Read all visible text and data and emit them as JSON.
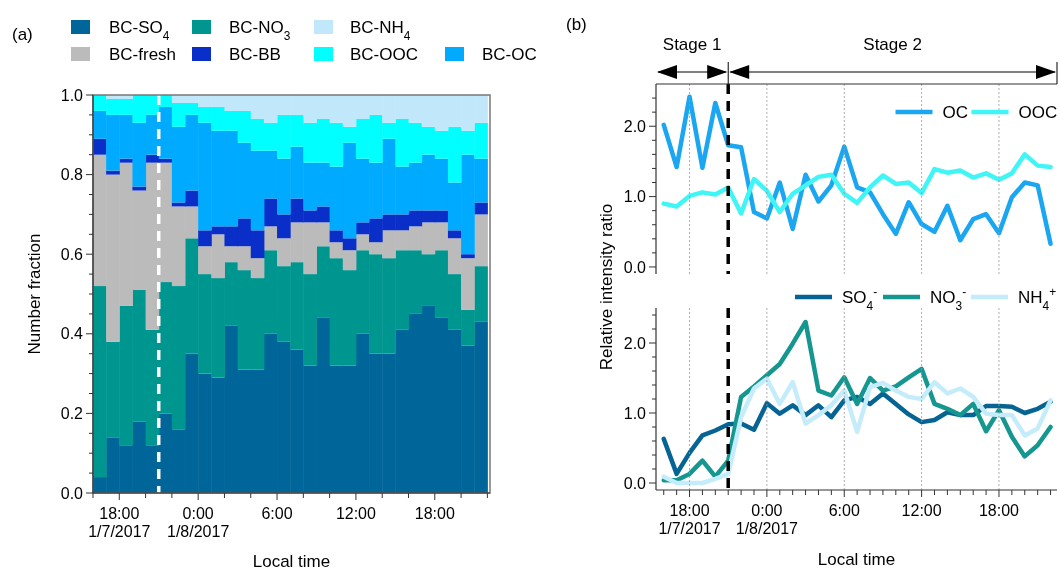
{
  "chart_data": [
    {
      "type": "bar",
      "stacked": true,
      "annotations": [
        "(a)"
      ],
      "xlabel": "Local time",
      "ylabel": "Number fraction",
      "legend": "top",
      "x": [
        "2017-01-07T16:30",
        "2017-01-07T17:30",
        "2017-01-07T18:30",
        "2017-01-07T19:30",
        "2017-01-07T20:30",
        "2017-01-07T21:30",
        "2017-01-07T22:30",
        "2017-01-07T23:30",
        "2017-01-08T00:30",
        "2017-01-08T01:30",
        "2017-01-08T02:30",
        "2017-01-08T03:30",
        "2017-01-08T04:30",
        "2017-01-08T05:30",
        "2017-01-08T06:30",
        "2017-01-08T07:30",
        "2017-01-08T08:30",
        "2017-01-08T09:30",
        "2017-01-08T10:30",
        "2017-01-08T11:30",
        "2017-01-08T12:30",
        "2017-01-08T13:30",
        "2017-01-08T14:30",
        "2017-01-08T15:30",
        "2017-01-08T16:30",
        "2017-01-08T17:30",
        "2017-01-08T18:30",
        "2017-01-08T19:30",
        "2017-01-08T20:30",
        "2017-01-08T21:30"
      ],
      "xlim": [
        "2017-01-07T16:00",
        "2017-01-08T22:12"
      ],
      "xticks": [
        {
          "value": "2017-01-07T16:00",
          "label": null
        },
        {
          "value": "2017-01-07T18:00",
          "label": "18:00\n1/7/2017"
        },
        {
          "value": "2017-01-07T20:00",
          "label": null
        },
        {
          "value": "2017-01-07T22:00",
          "label": null
        },
        {
          "value": "2017-01-08T00:00",
          "label": "0:00\n1/8/2017"
        },
        {
          "value": "2017-01-08T02:00",
          "label": null
        },
        {
          "value": "2017-01-08T04:00",
          "label": null
        },
        {
          "value": "2017-01-08T06:00",
          "label": "6:00"
        },
        {
          "value": "2017-01-08T08:00",
          "label": null
        },
        {
          "value": "2017-01-08T10:00",
          "label": null
        },
        {
          "value": "2017-01-08T12:00",
          "label": "12:00"
        },
        {
          "value": "2017-01-08T14:00",
          "label": null
        },
        {
          "value": "2017-01-08T16:00",
          "label": null
        },
        {
          "value": "2017-01-08T18:00",
          "label": "18:00"
        },
        {
          "value": "2017-01-08T20:00",
          "label": null
        },
        {
          "value": "2017-01-08T22:00",
          "label": null
        }
      ],
      "ylim": [
        0,
        1
      ],
      "yticks": [
        {
          "value": 0,
          "label": "0.0"
        },
        {
          "value": 0.05,
          "label": null
        },
        {
          "value": 0.1,
          "label": null
        },
        {
          "value": 0.15,
          "label": null
        },
        {
          "value": 0.2,
          "label": "0.2"
        },
        {
          "value": 0.25,
          "label": null
        },
        {
          "value": 0.3,
          "label": null
        },
        {
          "value": 0.35,
          "label": null
        },
        {
          "value": 0.4,
          "label": "0.4"
        },
        {
          "value": 0.45,
          "label": null
        },
        {
          "value": 0.5,
          "label": null
        },
        {
          "value": 0.55,
          "label": null
        },
        {
          "value": 0.6,
          "label": "0.6"
        },
        {
          "value": 0.65,
          "label": null
        },
        {
          "value": 0.7,
          "label": null
        },
        {
          "value": 0.75,
          "label": null
        },
        {
          "value": 0.8,
          "label": "0.8"
        },
        {
          "value": 0.85,
          "label": null
        },
        {
          "value": 0.9,
          "label": null
        },
        {
          "value": 0.95,
          "label": null
        },
        {
          "value": 1,
          "label": "1.0"
        }
      ],
      "ref_lines": [
        {
          "axis": "x",
          "value": "2017-01-07T21:00",
          "color": "#ffffff",
          "line_style": "dashed"
        }
      ],
      "series": [
        {
          "name": "BC-SO$_{4}$",
          "color": "#006699",
          "values": [
            0.04,
            0.14,
            0.12,
            0.18,
            0.12,
            0.2,
            0.16,
            0.35,
            0.3,
            0.29,
            0.42,
            0.31,
            0.31,
            0.4,
            0.38,
            0.36,
            0.32,
            0.44,
            0.32,
            0.32,
            0.4,
            0.35,
            0.35,
            0.41,
            0.45,
            0.47,
            0.44,
            0.41,
            0.37,
            0.43
          ]
        },
        {
          "name": "BC-NO$_{3}$",
          "color": "#009690",
          "values": [
            0.48,
            0.24,
            0.35,
            0.33,
            0.29,
            0.33,
            0.36,
            0.29,
            0.25,
            0.25,
            0.16,
            0.25,
            0.23,
            0.21,
            0.19,
            0.22,
            0.23,
            0.18,
            0.27,
            0.24,
            0.21,
            0.25,
            0.24,
            0.2,
            0.16,
            0.13,
            0.17,
            0.14,
            0.09,
            0.14
          ]
        },
        {
          "name": "BC-fresh",
          "color": "#bbbbbb",
          "values": [
            0.33,
            0.42,
            0.36,
            0.25,
            0.42,
            0.3,
            0.2,
            0.08,
            0.07,
            0.11,
            0.04,
            0.06,
            0.05,
            0.06,
            0.07,
            0.1,
            0.13,
            0.06,
            0.04,
            0.05,
            0.04,
            0.03,
            0.07,
            0.05,
            0.06,
            0.08,
            0.07,
            0.09,
            0.13,
            0.13
          ]
        },
        {
          "name": "BC-BB",
          "color": "#0a2ec8",
          "values": [
            0.04,
            0.01,
            0.01,
            0.01,
            0.02,
            0.01,
            0.01,
            0.04,
            0.04,
            0.02,
            0.05,
            0.07,
            0.07,
            0.07,
            0.06,
            0.06,
            0.03,
            0.04,
            0.03,
            0.03,
            0.03,
            0.06,
            0.04,
            0.04,
            0.04,
            0.03,
            0.03,
            0.02,
            0.01,
            0.03
          ]
        },
        {
          "name": "BC-OC",
          "color": "#00aaff",
          "values": [
            0.07,
            0.14,
            0.11,
            0.16,
            0.1,
            0.13,
            0.19,
            0.19,
            0.27,
            0.24,
            0.24,
            0.19,
            0.2,
            0.12,
            0.14,
            0.13,
            0.12,
            0.11,
            0.16,
            0.24,
            0.16,
            0.14,
            0.19,
            0.12,
            0.12,
            0.14,
            0.13,
            0.12,
            0.25,
            0.11
          ]
        },
        {
          "name": "BC-OOC",
          "color": "#00ffff",
          "values": [
            0.04,
            0.04,
            0.04,
            0.07,
            0.05,
            0.03,
            0.06,
            0.03,
            0.04,
            0.06,
            0.05,
            0.08,
            0.08,
            0.07,
            0.11,
            0.08,
            0.1,
            0.11,
            0.11,
            0.04,
            0.1,
            0.12,
            0.04,
            0.12,
            0.1,
            0.07,
            0.07,
            0.14,
            0.06,
            0.09
          ]
        },
        {
          "name": "BC-NH$_{4}$",
          "color": "#c0e8fa",
          "values": [
            0,
            0.01,
            0.01,
            0,
            0,
            0,
            0.02,
            0.02,
            0.03,
            0.03,
            0.04,
            0.04,
            0.06,
            0.07,
            0.05,
            0.05,
            0.07,
            0.06,
            0.07,
            0.08,
            0.06,
            0.05,
            0.07,
            0.06,
            0.07,
            0.08,
            0.09,
            0.08,
            0.09,
            0.07
          ]
        }
      ]
    },
    {
      "type": "line",
      "annotations": [
        "(b)",
        "Stage 1",
        "Stage 2"
      ],
      "ylabel": "Relative intensity ratio",
      "legend": "top right",
      "grid": "x",
      "tick_labels": "y",
      "marker": "none",
      "line_style": "solid",
      "x": [
        "2017-01-07T16:00",
        "2017-01-07T17:00",
        "2017-01-07T18:00",
        "2017-01-07T19:00",
        "2017-01-07T20:00",
        "2017-01-07T21:00",
        "2017-01-07T22:00",
        "2017-01-07T23:00",
        "2017-01-08T00:00",
        "2017-01-08T01:00",
        "2017-01-08T02:00",
        "2017-01-08T03:00",
        "2017-01-08T04:00",
        "2017-01-08T05:00",
        "2017-01-08T06:00",
        "2017-01-08T07:00",
        "2017-01-08T08:00",
        "2017-01-08T09:00",
        "2017-01-08T10:00",
        "2017-01-08T11:00",
        "2017-01-08T12:00",
        "2017-01-08T13:00",
        "2017-01-08T14:00",
        "2017-01-08T15:00",
        "2017-01-08T16:00",
        "2017-01-08T17:00",
        "2017-01-08T18:00",
        "2017-01-08T19:00",
        "2017-01-08T20:00",
        "2017-01-08T21:00",
        "2017-01-08T22:00"
      ],
      "xlim": [
        "2017-01-07T15:24",
        "2017-01-08T22:30"
      ],
      "xticks": [
        {
          "value": "2017-01-07T18:00",
          "label": null
        },
        {
          "value": "2017-01-08T00:00",
          "label": null
        },
        {
          "value": "2017-01-08T06:00",
          "label": null
        },
        {
          "value": "2017-01-08T12:00",
          "label": null
        },
        {
          "value": "2017-01-08T18:00",
          "label": null
        }
      ],
      "ylim": [
        -0.1,
        2.6
      ],
      "yticks": [
        {
          "value": 0,
          "label": "0.0"
        },
        {
          "value": 0.2,
          "label": null
        },
        {
          "value": 0.4,
          "label": null
        },
        {
          "value": 0.6,
          "label": null
        },
        {
          "value": 0.8,
          "label": null
        },
        {
          "value": 1,
          "label": "1.0"
        },
        {
          "value": 1.2,
          "label": null
        },
        {
          "value": 1.4,
          "label": null
        },
        {
          "value": 1.6,
          "label": null
        },
        {
          "value": 1.8,
          "label": null
        },
        {
          "value": 2,
          "label": "2.0"
        },
        {
          "value": 2.2,
          "label": null
        },
        {
          "value": 2.4,
          "label": null
        }
      ],
      "ref_lines": [
        {
          "axis": "x",
          "value": "2017-01-07T21:00",
          "color": "#000000",
          "line_style": "dashed"
        }
      ],
      "series": [
        {
          "name": "OC",
          "color": "#1aa6f0",
          "values": [
            2.02,
            1.42,
            2.42,
            1.41,
            2.33,
            1.73,
            1.7,
            0.78,
            0.69,
            1.2,
            0.54,
            1.31,
            0.93,
            1.16,
            1.71,
            1.13,
            1.06,
            0.75,
            0.47,
            0.92,
            0.61,
            0.5,
            0.87,
            0.38,
            0.68,
            0.75,
            0.48,
            0.99,
            1.2,
            1.16,
            0.33
          ]
        },
        {
          "name": "OOC",
          "color": "#3ff5f5",
          "values": [
            0.9,
            0.86,
            1.01,
            1.06,
            1.03,
            1.13,
            0.76,
            1.25,
            1.08,
            0.78,
            1.04,
            1.16,
            1.28,
            1.31,
            1.04,
            0.91,
            1.13,
            1.3,
            1.18,
            1.2,
            1.05,
            1.39,
            1.34,
            1.37,
            1.27,
            1.33,
            1.24,
            1.33,
            1.6,
            1.44,
            1.42
          ]
        }
      ]
    },
    {
      "type": "line",
      "xlabel": "Local time",
      "legend": "top",
      "grid": "x",
      "marker": "none",
      "line_style": "solid",
      "x": [
        "2017-01-07T16:00",
        "2017-01-07T17:00",
        "2017-01-07T18:00",
        "2017-01-07T19:00",
        "2017-01-07T20:00",
        "2017-01-07T21:00",
        "2017-01-07T22:00",
        "2017-01-07T23:00",
        "2017-01-08T00:00",
        "2017-01-08T01:00",
        "2017-01-08T02:00",
        "2017-01-08T03:00",
        "2017-01-08T04:00",
        "2017-01-08T05:00",
        "2017-01-08T06:00",
        "2017-01-08T07:00",
        "2017-01-08T08:00",
        "2017-01-08T09:00",
        "2017-01-08T10:00",
        "2017-01-08T11:00",
        "2017-01-08T12:00",
        "2017-01-08T13:00",
        "2017-01-08T14:00",
        "2017-01-08T15:00",
        "2017-01-08T16:00",
        "2017-01-08T17:00",
        "2017-01-08T18:00",
        "2017-01-08T19:00",
        "2017-01-08T20:00",
        "2017-01-08T21:00",
        "2017-01-08T22:00"
      ],
      "xlim": [
        "2017-01-07T15:24",
        "2017-01-08T22:30"
      ],
      "xticks": [
        {
          "value": "2017-01-07T16:00",
          "label": null
        },
        {
          "value": "2017-01-07T17:00",
          "label": null
        },
        {
          "value": "2017-01-07T18:00",
          "label": "18:00\n1/7/2017"
        },
        {
          "value": "2017-01-07T19:00",
          "label": null
        },
        {
          "value": "2017-01-07T20:00",
          "label": null
        },
        {
          "value": "2017-01-07T21:00",
          "label": null
        },
        {
          "value": "2017-01-07T22:00",
          "label": null
        },
        {
          "value": "2017-01-07T23:00",
          "label": null
        },
        {
          "value": "2017-01-08T00:00",
          "label": "0:00\n1/8/2017"
        },
        {
          "value": "2017-01-08T01:00",
          "label": null
        },
        {
          "value": "2017-01-08T02:00",
          "label": null
        },
        {
          "value": "2017-01-08T03:00",
          "label": null
        },
        {
          "value": "2017-01-08T04:00",
          "label": null
        },
        {
          "value": "2017-01-08T05:00",
          "label": null
        },
        {
          "value": "2017-01-08T06:00",
          "label": "6:00"
        },
        {
          "value": "2017-01-08T07:00",
          "label": null
        },
        {
          "value": "2017-01-08T08:00",
          "label": null
        },
        {
          "value": "2017-01-08T09:00",
          "label": null
        },
        {
          "value": "2017-01-08T10:00",
          "label": null
        },
        {
          "value": "2017-01-08T11:00",
          "label": null
        },
        {
          "value": "2017-01-08T12:00",
          "label": "12:00"
        },
        {
          "value": "2017-01-08T13:00",
          "label": null
        },
        {
          "value": "2017-01-08T14:00",
          "label": null
        },
        {
          "value": "2017-01-08T15:00",
          "label": null
        },
        {
          "value": "2017-01-08T16:00",
          "label": null
        },
        {
          "value": "2017-01-08T17:00",
          "label": null
        },
        {
          "value": "2017-01-08T18:00",
          "label": "18:00"
        },
        {
          "value": "2017-01-08T19:00",
          "label": null
        },
        {
          "value": "2017-01-08T20:00",
          "label": null
        },
        {
          "value": "2017-01-08T21:00",
          "label": null
        },
        {
          "value": "2017-01-08T22:00",
          "label": null
        }
      ],
      "ylim": [
        -0.1,
        2.5
      ],
      "yticks": [
        {
          "value": 0,
          "label": "0.0"
        },
        {
          "value": 0.2,
          "label": null
        },
        {
          "value": 0.4,
          "label": null
        },
        {
          "value": 0.6,
          "label": null
        },
        {
          "value": 0.8,
          "label": null
        },
        {
          "value": 1,
          "label": "1.0"
        },
        {
          "value": 1.2,
          "label": null
        },
        {
          "value": 1.4,
          "label": null
        },
        {
          "value": 1.6,
          "label": null
        },
        {
          "value": 1.8,
          "label": null
        },
        {
          "value": 2,
          "label": "2.0"
        },
        {
          "value": 2.2,
          "label": null
        },
        {
          "value": 2.4,
          "label": null
        }
      ],
      "ref_lines": [
        {
          "axis": "x",
          "value": "2017-01-07T21:00",
          "color": "#000000",
          "line_style": "dashed"
        }
      ],
      "series": [
        {
          "name": "SO$_{4}$$^{-}$",
          "color": "#066494",
          "values": [
            0.63,
            0.13,
            0.43,
            0.68,
            0.75,
            0.84,
            0.85,
            0.76,
            1.14,
            0.99,
            1.11,
            0.97,
            1.11,
            0.94,
            1.18,
            1.23,
            1.13,
            1.28,
            1.13,
            0.98,
            0.87,
            0.9,
            1.01,
            0.97,
            0.97,
            1.1,
            1.1,
            1.09,
            1.0,
            1.06,
            1.16
          ]
        },
        {
          "name": "NO$_{3}$$^{-}$",
          "color": "#15968f",
          "values": [
            0.04,
            0.04,
            0.13,
            0.32,
            0.09,
            0.32,
            1.23,
            1.38,
            1.54,
            1.7,
            1.99,
            2.3,
            1.32,
            1.25,
            1.51,
            1.13,
            1.5,
            1.32,
            1.38,
            1.51,
            1.63,
            1.13,
            1.06,
            0.97,
            1.13,
            0.74,
            1.04,
            0.66,
            0.38,
            0.54,
            0.8
          ]
        },
        {
          "name": "NH$_{4}$$^{+}$",
          "color": "#c4ecfa",
          "values": [
            0.09,
            0,
            0,
            0,
            0.06,
            0.13,
            0.94,
            1.35,
            1.49,
            1.13,
            1.44,
            0.85,
            0.97,
            1.11,
            1.32,
            0.73,
            1.37,
            1.43,
            1.32,
            1.23,
            1.2,
            1.44,
            1.28,
            1.35,
            1.23,
            0.99,
            0.97,
            0.97,
            0.68,
            0.78,
            1.18
          ]
        }
      ]
    }
  ]
}
